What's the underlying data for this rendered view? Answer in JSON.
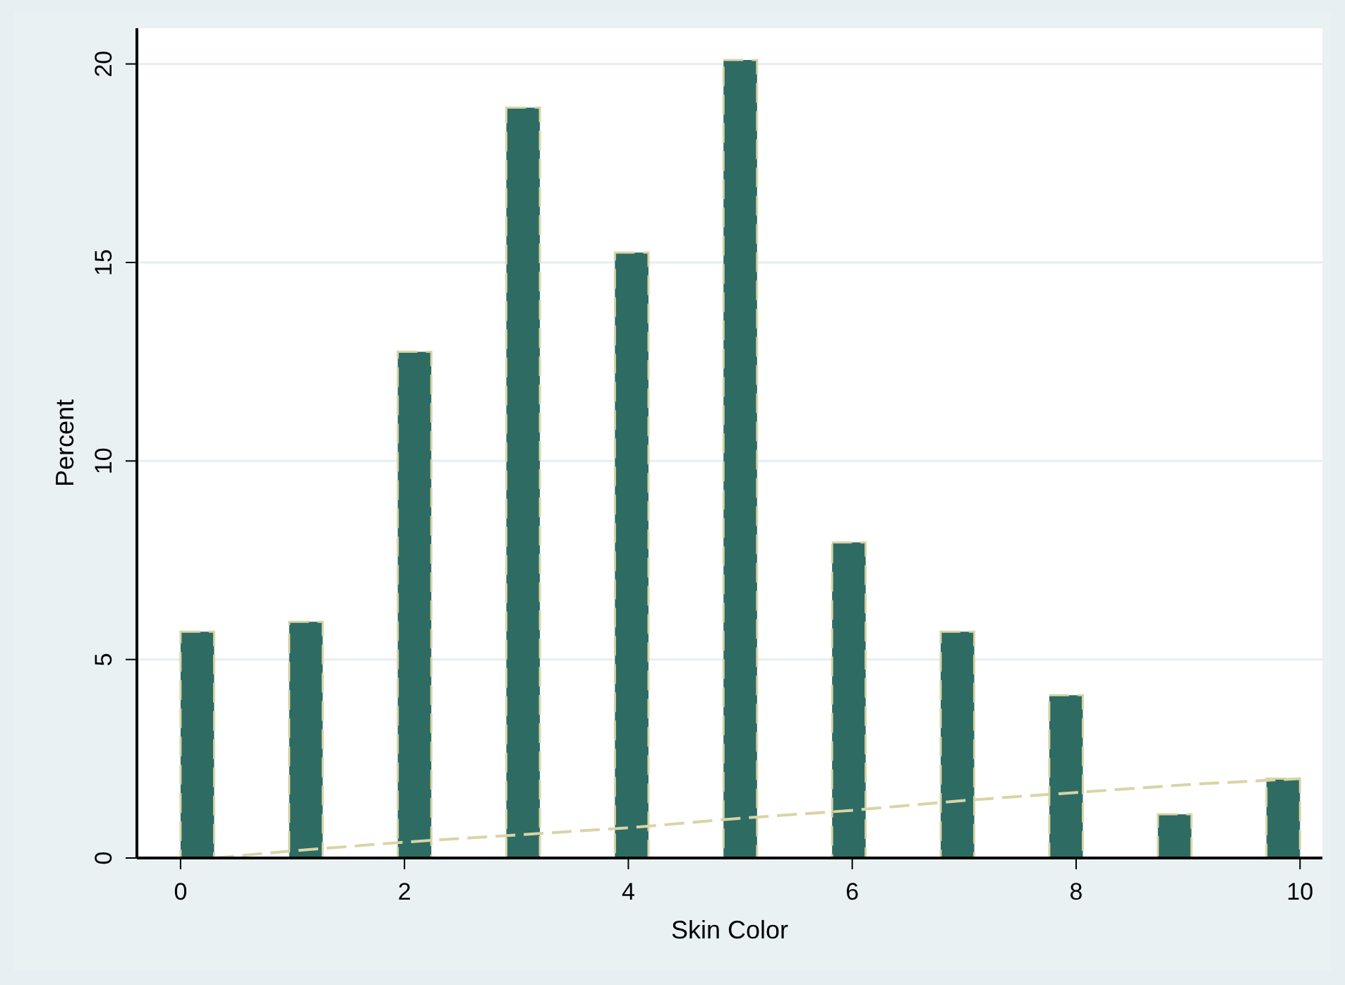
{
  "chart_data": {
    "type": "bar",
    "xlabel": "Skin Color",
    "ylabel": "Percent",
    "xlim": [
      -0.39,
      10.2
    ],
    "xticks": [
      0,
      2,
      4,
      6,
      8,
      10
    ],
    "ylim": [
      0,
      20.9
    ],
    "yticks": [
      0,
      5,
      10,
      15,
      20
    ],
    "grid": "y",
    "series": [
      {
        "color": "#2e6b63",
        "x": [
          0.15,
          1.12,
          2.09,
          3.06,
          4.03,
          5.0,
          5.97,
          6.94,
          7.91,
          8.88,
          9.85
        ],
        "values": [
          5.7,
          5.95,
          12.75,
          18.9,
          15.25,
          20.1,
          7.95,
          5.7,
          4.1,
          1.1,
          2.0
        ]
      },
      {
        "type": "line",
        "color": "#d9d4a6",
        "line_style": "dashed",
        "x": [
          0.3,
          1,
          2,
          3,
          4,
          5,
          6,
          7,
          8,
          9,
          10
        ],
        "values": [
          0,
          0.18,
          0.4,
          0.58,
          0.76,
          1.0,
          1.2,
          1.45,
          1.65,
          1.85,
          2.0
        ]
      }
    ]
  }
}
